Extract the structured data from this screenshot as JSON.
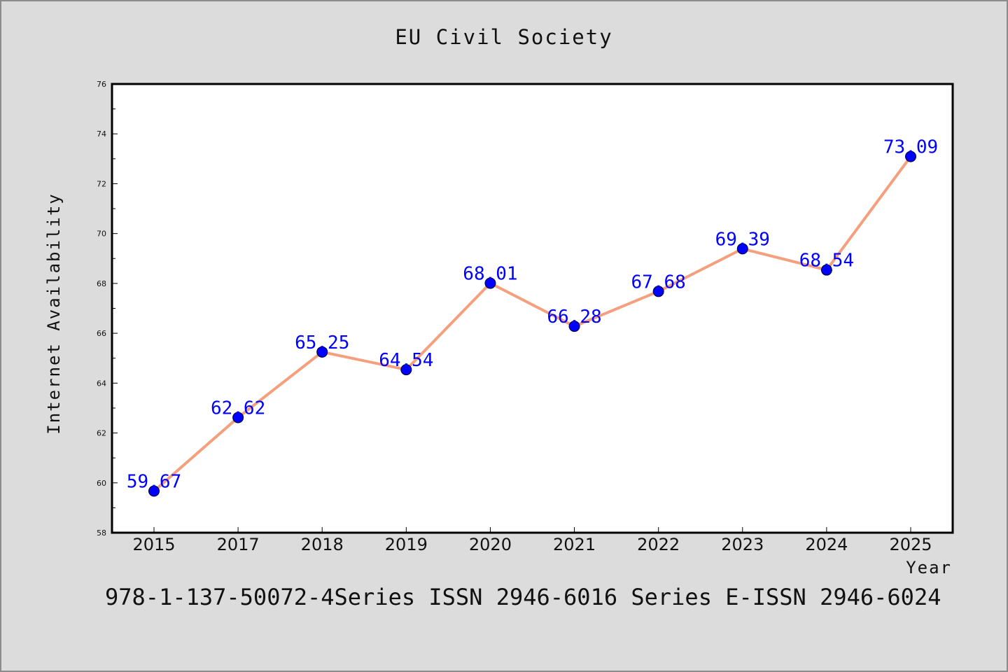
{
  "chart_data": {
    "type": "line",
    "title": "EU Civil Society",
    "xlabel": "Year",
    "ylabel": "Internet Availability",
    "categories": [
      "2015",
      "2017",
      "2018",
      "2019",
      "2020",
      "2021",
      "2022",
      "2023",
      "2024",
      "2025"
    ],
    "series": [
      {
        "values": [
          59.67,
          62.62,
          65.25,
          64.54,
          68.01,
          66.28,
          67.68,
          69.39,
          68.54,
          73.09
        ],
        "line_color": "#f4a07f",
        "marker_color": "#0000ff"
      }
    ],
    "data_labels": [
      "59.67",
      "62.62",
      "65.25",
      "64.54",
      "68.01",
      "66.28",
      "67.68",
      "69.39",
      "68.54",
      "73.09"
    ],
    "ylim": [
      58,
      76
    ],
    "yticks": [
      58,
      60,
      62,
      64,
      66,
      68,
      70,
      72,
      74,
      76
    ],
    "grid": false,
    "legend": "none",
    "footer": "978-1-137-50072-4Series ISSN 2946-6016 Series E-ISSN 2946-6024"
  }
}
